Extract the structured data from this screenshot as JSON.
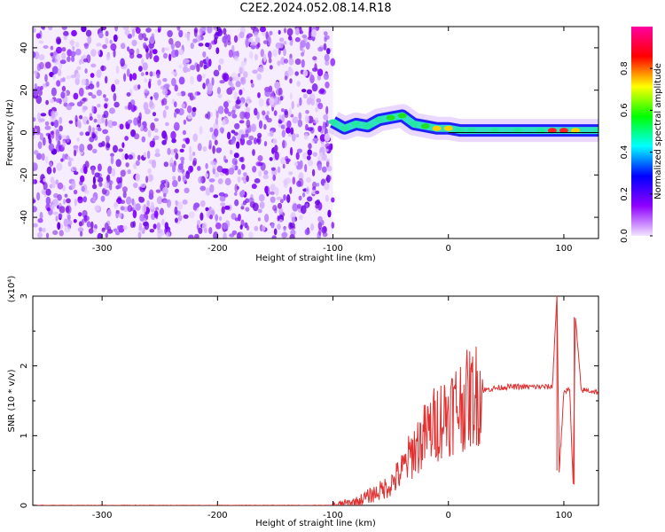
{
  "title": "C2E2.2024.052.08.14.R18",
  "chart_data": [
    {
      "type": "heatmap",
      "xlabel": "Height of straight line (km)",
      "ylabel": "Frequency (Hz)",
      "xlim": [
        -360,
        130
      ],
      "ylim": [
        -50,
        50
      ],
      "x_ticks": [
        -300,
        -200,
        -100,
        0,
        100
      ],
      "y_ticks": [
        -40,
        -20,
        0,
        20,
        40
      ],
      "colorbar": {
        "label": "Normalized spectral amplitude",
        "range": [
          0.0,
          1.0
        ],
        "ticks": [
          "0.0",
          "0.2",
          "0.4",
          "0.6",
          "0.8"
        ],
        "colors": [
          "#f2e6ff",
          "#9000ff",
          "#0000ff",
          "#00ffff",
          "#00ff00",
          "#ffff00",
          "#ff0000",
          "#ff00a0"
        ]
      },
      "noise_region_x": [
        -360,
        -100
      ],
      "signal_ridge": {
        "x": [
          -100,
          -90,
          -80,
          -70,
          -60,
          -50,
          -40,
          -30,
          -20,
          -10,
          0,
          10,
          20,
          40,
          60,
          80,
          90,
          100,
          110,
          130
        ],
        "y": [
          5,
          2,
          4,
          3,
          6,
          7,
          8,
          4,
          3,
          2,
          2,
          1,
          1,
          1,
          1,
          1,
          1,
          1,
          1,
          1
        ],
        "amplitude": [
          0.45,
          0.5,
          0.5,
          0.48,
          0.5,
          0.52,
          0.55,
          0.5,
          0.6,
          0.7,
          0.8,
          0.45,
          0.45,
          0.45,
          0.45,
          0.5,
          0.85,
          0.9,
          0.75,
          0.45
        ]
      }
    },
    {
      "type": "line",
      "xlabel": "Height of straight line (km)",
      "ylabel": "SNR (10 * v/v)",
      "y_multiplier": "(x10⁴)",
      "xlim": [
        -360,
        130
      ],
      "ylim": [
        0,
        3
      ],
      "x_ticks": [
        -300,
        -200,
        -100,
        0,
        100
      ],
      "y_ticks": [
        0,
        1,
        2,
        3
      ],
      "color": "#e03030",
      "series": [
        {
          "x": [
            -360,
            -200,
            -100,
            -80,
            -60,
            -50,
            -40,
            -30,
            -20,
            -10,
            0,
            10,
            20,
            30,
            40,
            50,
            60,
            70,
            80,
            90,
            94,
            96,
            100,
            105,
            108,
            110,
            115,
            120,
            130
          ],
          "y": [
            0.0,
            0.0,
            0.0,
            0.05,
            0.2,
            0.3,
            0.5,
            0.8,
            1.0,
            1.2,
            1.35,
            1.45,
            1.55,
            1.65,
            1.68,
            1.7,
            1.7,
            1.7,
            1.7,
            1.7,
            3.0,
            0.5,
            1.6,
            1.7,
            0.3,
            2.7,
            1.65,
            1.65,
            1.62
          ]
        }
      ]
    }
  ]
}
